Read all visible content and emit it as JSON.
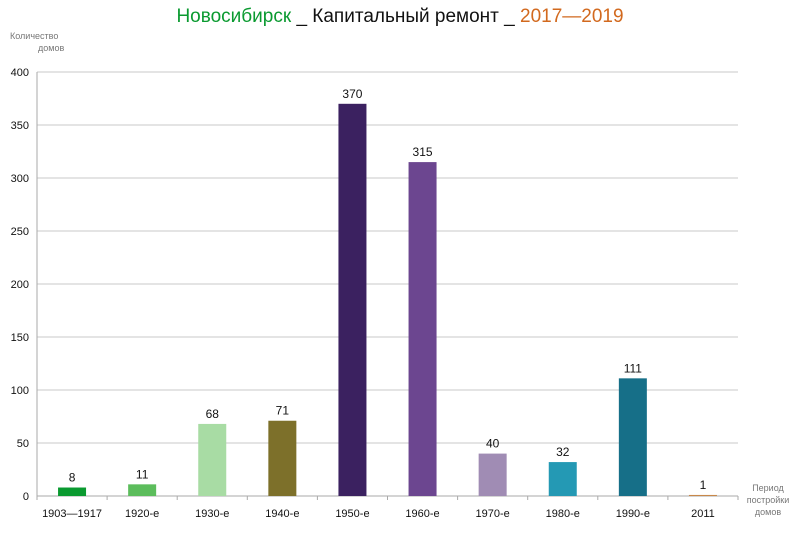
{
  "chart_data": {
    "type": "bar",
    "title_parts": [
      {
        "text": "Новосибирск",
        "color": "#0a9a30"
      },
      {
        "text": " _ Капитальный ремонт _ ",
        "color": "#111111"
      },
      {
        "text": " 2017—2019",
        "color": "#d2691e"
      }
    ],
    "ylabel_lines": [
      "Количество",
      "домов"
    ],
    "xlabel_lines": [
      "Период",
      "постройки",
      "домов"
    ],
    "categories": [
      "1903—1917",
      "1920-е",
      "1930-е",
      "1940-е",
      "1950-е",
      "1960-е",
      "1970-е",
      "1980-е",
      "1990-е",
      "2011"
    ],
    "values": [
      8,
      11,
      68,
      71,
      370,
      315,
      40,
      32,
      111,
      1
    ],
    "colors": [
      "#0a9a30",
      "#5cbd5c",
      "#a8dca4",
      "#7d702a",
      "#3b2160",
      "#6c4690",
      "#a08cb4",
      "#2499b4",
      "#166f88",
      "#c8884a"
    ],
    "ylim": [
      0,
      400
    ],
    "yticks": [
      0,
      50,
      100,
      150,
      200,
      250,
      300,
      350,
      400
    ],
    "grid": true,
    "legend": "none"
  }
}
